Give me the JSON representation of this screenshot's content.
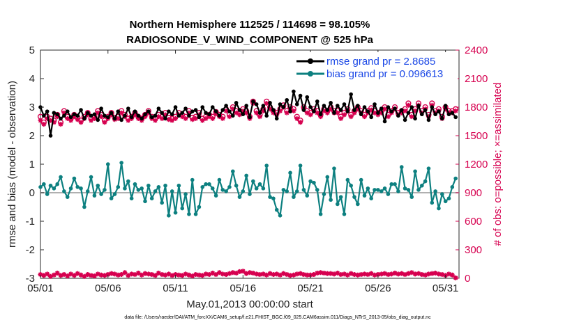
{
  "chart_data": {
    "type": "line",
    "title_line1": "Northern Hemisphere 112525 / 114698 = 98.105%",
    "title_line2": "RADIOSONDE_V_WIND_COMPONENT @ 525 hPa",
    "xlabel": "May.01,2013 00:00:00 start",
    "ylabel": "rmse and bias (model - observation)",
    "ylabel_right": "# of obs: o=possible; ×=assimilated",
    "footnote": "data file: /Users/raeder/DAI/ATM_forcXX/CAM6_setup/f.e21.FHIST_BGC.f09_025.CAM6assim.011/Diags_NTrS_2013-05/obs_diag_output.nc",
    "xlim": [
      1,
      32
    ],
    "ylim": [
      -3,
      5
    ],
    "ylim_right": [
      0,
      2400
    ],
    "x_ticks": [
      1,
      6,
      11,
      16,
      21,
      26,
      31
    ],
    "x_tick_labels": [
      "05/01",
      "05/06",
      "05/11",
      "05/16",
      "05/21",
      "05/26",
      "05/31"
    ],
    "y_ticks": [
      -3,
      -2,
      -1,
      0,
      1,
      2,
      3,
      4,
      5
    ],
    "y_tick_labels": [
      "-3",
      "-2",
      "-1",
      "0",
      "1",
      "2",
      "3",
      "4",
      "5"
    ],
    "y_right_ticks": [
      0,
      300,
      600,
      900,
      1200,
      1500,
      1800,
      2100,
      2400
    ],
    "y_right_tick_labels": [
      "0",
      "300",
      "600",
      "900",
      "1200",
      "1500",
      "1800",
      "2100",
      "2400"
    ],
    "legend": [
      {
        "label": "rmse grand pr = 2.8685",
        "color": "#000000"
      },
      {
        "label": "bias grand pr = 0.096613",
        "color": "#0d8080"
      }
    ],
    "colors": {
      "rmse": "#000000",
      "bias": "#0d8080",
      "obs": "#d6004f",
      "zero_line": "#b0b0b0"
    },
    "x": [
      1.0,
      1.25,
      1.5,
      1.75,
      2.0,
      2.25,
      2.5,
      2.75,
      3.0,
      3.25,
      3.5,
      3.75,
      4.0,
      4.25,
      4.5,
      4.75,
      5.0,
      5.25,
      5.5,
      5.75,
      6.0,
      6.25,
      6.5,
      6.75,
      7.0,
      7.25,
      7.5,
      7.75,
      8.0,
      8.25,
      8.5,
      8.75,
      9.0,
      9.25,
      9.5,
      9.75,
      10.0,
      10.25,
      10.5,
      10.75,
      11.0,
      11.25,
      11.5,
      11.75,
      12.0,
      12.25,
      12.5,
      12.75,
      13.0,
      13.25,
      13.5,
      13.75,
      14.0,
      14.25,
      14.5,
      14.75,
      15.0,
      15.25,
      15.5,
      15.75,
      16.0,
      16.25,
      16.5,
      16.75,
      17.0,
      17.25,
      17.5,
      17.75,
      18.0,
      18.25,
      18.5,
      18.75,
      19.0,
      19.25,
      19.5,
      19.75,
      20.0,
      20.25,
      20.5,
      20.75,
      21.0,
      21.25,
      21.5,
      21.75,
      22.0,
      22.25,
      22.5,
      22.75,
      23.0,
      23.25,
      23.5,
      23.75,
      24.0,
      24.25,
      24.5,
      24.75,
      25.0,
      25.25,
      25.5,
      25.75,
      26.0,
      26.25,
      26.5,
      26.75,
      27.0,
      27.25,
      27.5,
      27.75,
      28.0,
      28.25,
      28.5,
      28.75,
      29.0,
      29.25,
      29.5,
      29.75,
      30.0,
      30.25,
      30.5,
      30.75,
      31.0,
      31.25,
      31.5,
      31.75
    ],
    "series": [
      {
        "name": "rmse",
        "values": [
          3.0,
          2.7,
          2.85,
          2.0,
          2.8,
          2.75,
          2.6,
          2.7,
          2.85,
          2.65,
          2.75,
          2.7,
          2.9,
          2.6,
          2.8,
          2.7,
          2.75,
          2.55,
          2.95,
          2.7,
          2.65,
          2.8,
          2.6,
          2.85,
          2.55,
          2.7,
          2.95,
          2.65,
          2.85,
          2.7,
          2.6,
          2.75,
          2.85,
          2.65,
          2.7,
          2.95,
          2.8,
          2.6,
          2.85,
          2.75,
          3.0,
          2.7,
          2.8,
          2.95,
          2.7,
          2.85,
          2.9,
          2.65,
          3.0,
          2.8,
          2.75,
          3.0,
          2.85,
          2.7,
          2.9,
          3.05,
          2.85,
          2.7,
          3.15,
          2.9,
          2.75,
          3.05,
          2.65,
          3.2,
          3.1,
          2.8,
          3.05,
          2.7,
          3.15,
          2.9,
          2.6,
          3.1,
          3.0,
          3.25,
          2.85,
          3.55,
          3.1,
          3.4,
          2.9,
          3.35,
          3.0,
          2.85,
          3.2,
          2.75,
          3.05,
          2.9,
          3.15,
          2.8,
          3.05,
          2.9,
          3.1,
          2.85,
          3.45,
          2.9,
          3.05,
          2.75,
          3.0,
          2.85,
          2.65,
          3.1,
          2.8,
          2.95,
          2.5,
          3.0,
          2.85,
          2.95,
          2.7,
          2.9,
          2.55,
          2.8,
          3.0,
          2.6,
          3.05,
          2.75,
          2.9,
          2.55,
          3.0,
          2.75,
          2.85,
          2.6,
          3.05,
          2.75,
          2.8,
          2.65
        ]
      },
      {
        "name": "bias",
        "values": [
          0.2,
          0.3,
          -0.05,
          0.25,
          0.15,
          0.3,
          0.55,
          0.05,
          -0.15,
          0.15,
          0.5,
          0.2,
          0.15,
          -0.5,
          0.05,
          0.55,
          -0.1,
          0.25,
          -0.05,
          0.1,
          1.0,
          -0.2,
          -0.05,
          0.2,
          1.05,
          0.15,
          0.4,
          -0.2,
          0.3,
          0.1,
          0.15,
          -0.3,
          0.25,
          -0.2,
          0.05,
          0.2,
          -0.35,
          0.25,
          -0.8,
          0.05,
          -0.7,
          0.25,
          -0.55,
          -0.05,
          -0.75,
          0.45,
          -0.75,
          -0.5,
          0.2,
          0.3,
          0.3,
          0.15,
          -0.1,
          0.45,
          0.1,
          0.05,
          0.2,
          0.75,
          0.25,
          -0.15,
          0.05,
          0.6,
          -0.05,
          0.4,
          0.15,
          0.3,
          0.15,
          0.95,
          -0.15,
          -0.2,
          -0.6,
          -0.8,
          0.1,
          0.05,
          0.7,
          -0.15,
          0.05,
          0.95,
          0.1,
          -0.1,
          0.4,
          0.35,
          0.1,
          -0.75,
          -0.05,
          0.55,
          -0.25,
          0.85,
          -0.4,
          -0.15,
          -0.75,
          0.45,
          0.25,
          -0.15,
          -0.4,
          0.45,
          -0.1,
          0.15,
          -0.2,
          0.1,
          0.1,
          0.05,
          0.15,
          -0.05,
          0.3,
          0.3,
          0.05,
          0.9,
          0.15,
          0.1,
          -0.15,
          0.75,
          0.1,
          0.25,
          0.4,
          0.85,
          -0.35,
          0.05,
          -0.55,
          -0.05,
          -0.3,
          -0.2,
          0.2,
          0.5
        ]
      },
      {
        "name": "obs_possible",
        "values": [
          1700,
          1640,
          1700,
          1680,
          1660,
          1720,
          1640,
          1760,
          1700,
          1680,
          1720,
          1690,
          1660,
          1700,
          1740,
          1680,
          1700,
          1760,
          1720,
          1660,
          1700,
          1740,
          1690,
          1700,
          1760,
          1720,
          1680,
          1700,
          1740,
          1700,
          1680,
          1720,
          1760,
          1700,
          1680,
          1720,
          1700,
          1740,
          1690,
          1680,
          1700,
          1740,
          1720,
          1700,
          1760,
          1690,
          1700,
          1740,
          1680,
          1700,
          1720,
          1700,
          1750,
          1720,
          1700,
          1780,
          1720,
          1800,
          1760,
          1740,
          1780,
          1760,
          1700,
          1860,
          1760,
          1720,
          1780,
          1860,
          1800,
          1760,
          1740,
          1780,
          1820,
          1760,
          1800,
          1780,
          1700,
          1660,
          1800,
          1760,
          1740,
          1780,
          1760,
          1720,
          1780,
          1760,
          1800,
          1760,
          1760,
          1700,
          1740,
          1780,
          1720,
          1760,
          1800,
          1760,
          1720,
          1760,
          1790,
          1760,
          1740,
          1760,
          1800,
          1720,
          1760,
          1800,
          1740,
          1760,
          1780,
          1840,
          1720,
          1780,
          1840,
          1760,
          1800,
          1720,
          1840,
          1760,
          1780,
          1700,
          1800,
          1760,
          1760,
          1780
        ]
      },
      {
        "name": "obs_assimilated",
        "values": [
          1660,
          1620,
          1680,
          1660,
          1640,
          1700,
          1620,
          1740,
          1680,
          1660,
          1700,
          1670,
          1640,
          1680,
          1720,
          1660,
          1680,
          1740,
          1700,
          1640,
          1680,
          1720,
          1670,
          1680,
          1740,
          1700,
          1660,
          1680,
          1720,
          1680,
          1660,
          1700,
          1740,
          1680,
          1660,
          1700,
          1680,
          1720,
          1670,
          1660,
          1680,
          1720,
          1700,
          1680,
          1740,
          1670,
          1680,
          1720,
          1660,
          1680,
          1700,
          1680,
          1730,
          1700,
          1680,
          1760,
          1700,
          1780,
          1740,
          1720,
          1760,
          1740,
          1680,
          1840,
          1740,
          1700,
          1760,
          1840,
          1780,
          1740,
          1720,
          1760,
          1800,
          1740,
          1780,
          1760,
          1680,
          1640,
          1780,
          1740,
          1720,
          1760,
          1740,
          1700,
          1760,
          1740,
          1780,
          1740,
          1740,
          1680,
          1720,
          1760,
          1700,
          1740,
          1780,
          1740,
          1700,
          1740,
          1770,
          1740,
          1720,
          1740,
          1780,
          1700,
          1740,
          1780,
          1720,
          1740,
          1760,
          1820,
          1700,
          1760,
          1820,
          1740,
          1780,
          1700,
          1820,
          1740,
          1760,
          1680,
          1780,
          1740,
          1740,
          1760
        ]
      },
      {
        "name": "bottom_count",
        "values": [
          40,
          30,
          45,
          20,
          35,
          55,
          30,
          40,
          25,
          45,
          30,
          50,
          35,
          20,
          40,
          30,
          25,
          45,
          35,
          30,
          40,
          50,
          45,
          35,
          40,
          60,
          30,
          45,
          40,
          55,
          35,
          50,
          45,
          40,
          30,
          55,
          40,
          35,
          45,
          30,
          40,
          35,
          30,
          45,
          35,
          25,
          40,
          35,
          30,
          45,
          40,
          55,
          40,
          60,
          45,
          40,
          50,
          60,
          55,
          70,
          75,
          50,
          60,
          55,
          45,
          40,
          45,
          35,
          50,
          40,
          45,
          35,
          50,
          40,
          30,
          35,
          45,
          50,
          40,
          35,
          35,
          40,
          55,
          60,
          55,
          50,
          50,
          45,
          55,
          40,
          45,
          35,
          50,
          40,
          35,
          40,
          45,
          40,
          50,
          35,
          40,
          45,
          50,
          40,
          45,
          55,
          45,
          50,
          40,
          50,
          60,
          45,
          50,
          40,
          35,
          45,
          50,
          55,
          45,
          40,
          30,
          45,
          35,
          5
        ]
      }
    ]
  }
}
